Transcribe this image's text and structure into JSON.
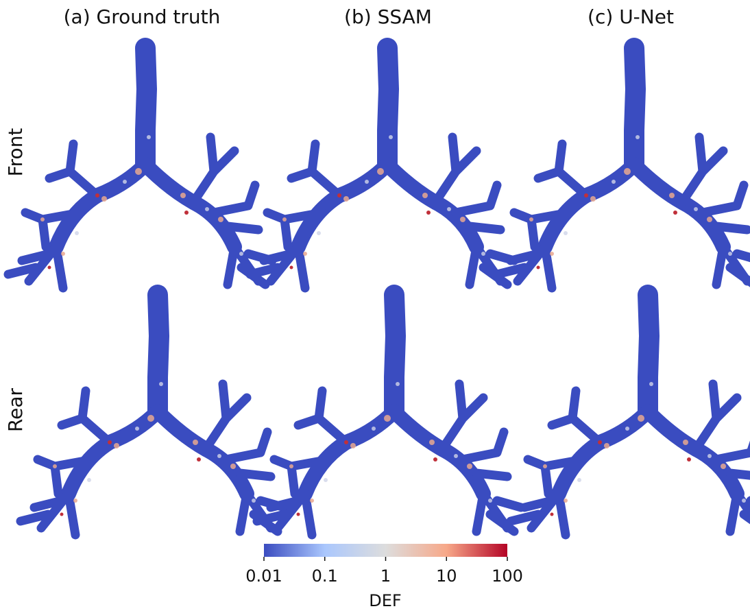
{
  "columns": [
    "(a) Ground truth",
    "(b) SSAM",
    "(c) U-Net"
  ],
  "rows": [
    "Front",
    "Rear"
  ],
  "colorbar": {
    "label": "DEF",
    "log": true,
    "range": [
      0.01,
      100
    ],
    "ticks": [
      0.01,
      0.1,
      1,
      10,
      100
    ],
    "colors": [
      "#3b4cc0",
      "#aac7fd",
      "#dddddd",
      "#f7a889",
      "#b40426"
    ]
  }
}
